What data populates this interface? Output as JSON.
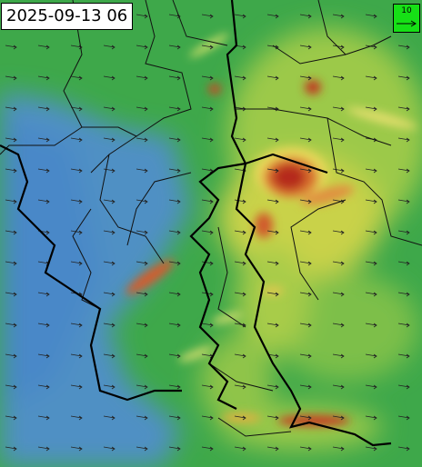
{
  "timestamp": "2025-09-13 06",
  "legend": {
    "label": "10"
  }
}
